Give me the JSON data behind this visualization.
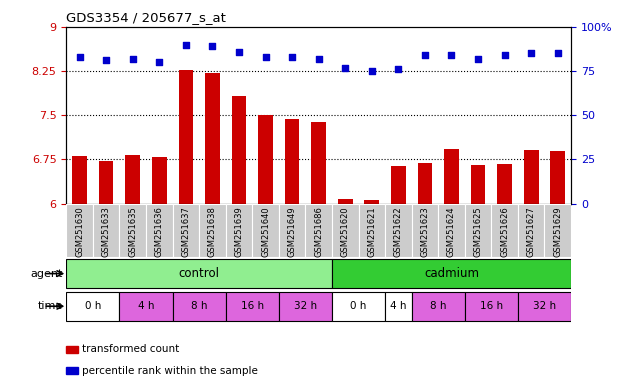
{
  "title": "GDS3354 / 205677_s_at",
  "samples": [
    "GSM251630",
    "GSM251633",
    "GSM251635",
    "GSM251636",
    "GSM251637",
    "GSM251638",
    "GSM251639",
    "GSM251640",
    "GSM251649",
    "GSM251686",
    "GSM251620",
    "GSM251621",
    "GSM251622",
    "GSM251623",
    "GSM251624",
    "GSM251625",
    "GSM251626",
    "GSM251627",
    "GSM251629"
  ],
  "bar_values": [
    6.81,
    6.73,
    6.82,
    6.79,
    8.27,
    8.22,
    7.82,
    7.5,
    7.44,
    7.38,
    6.08,
    6.06,
    6.63,
    6.69,
    6.93,
    6.65,
    6.67,
    6.91,
    6.89
  ],
  "dot_values": [
    83,
    81,
    82,
    80,
    90,
    89,
    86,
    83,
    83,
    82,
    77,
    75,
    76,
    84,
    84,
    82,
    84,
    85,
    85
  ],
  "bar_color": "#cc0000",
  "dot_color": "#0000cc",
  "ylim_left": [
    6.0,
    9.0
  ],
  "ylim_right": [
    0,
    100
  ],
  "yticks_left": [
    6.0,
    6.75,
    7.5,
    8.25,
    9.0
  ],
  "yticks_right": [
    0,
    25,
    50,
    75,
    100
  ],
  "ytick_labels_left": [
    "6",
    "6.75",
    "7.5",
    "8.25",
    "9"
  ],
  "ytick_labels_right": [
    "0",
    "25",
    "50",
    "75",
    "100%"
  ],
  "hlines": [
    6.75,
    7.5,
    8.25
  ],
  "agent_groups": [
    {
      "label": "control",
      "start": 0,
      "end": 9,
      "color": "#90ee90"
    },
    {
      "label": "cadmium",
      "start": 10,
      "end": 18,
      "color": "#33cc33"
    }
  ],
  "time_spans": [
    {
      "label": "0 h",
      "start": 0,
      "end": 1,
      "color": "#ffffff"
    },
    {
      "label": "4 h",
      "start": 2,
      "end": 3,
      "color": "#dd66dd"
    },
    {
      "label": "8 h",
      "start": 4,
      "end": 5,
      "color": "#dd66dd"
    },
    {
      "label": "16 h",
      "start": 6,
      "end": 7,
      "color": "#dd66dd"
    },
    {
      "label": "32 h",
      "start": 8,
      "end": 9,
      "color": "#dd66dd"
    },
    {
      "label": "0 h",
      "start": 10,
      "end": 11,
      "color": "#ffffff"
    },
    {
      "label": "4 h",
      "start": 12,
      "end": 12,
      "color": "#ffffff"
    },
    {
      "label": "8 h",
      "start": 13,
      "end": 14,
      "color": "#dd66dd"
    },
    {
      "label": "16 h",
      "start": 15,
      "end": 16,
      "color": "#dd66dd"
    },
    {
      "label": "32 h",
      "start": 17,
      "end": 18,
      "color": "#dd66dd"
    }
  ],
  "legend_items": [
    {
      "label": "transformed count",
      "color": "#cc0000"
    },
    {
      "label": "percentile rank within the sample",
      "color": "#0000cc"
    }
  ],
  "chart_bg": "#ffffff",
  "tick_area_bg": "#cccccc"
}
